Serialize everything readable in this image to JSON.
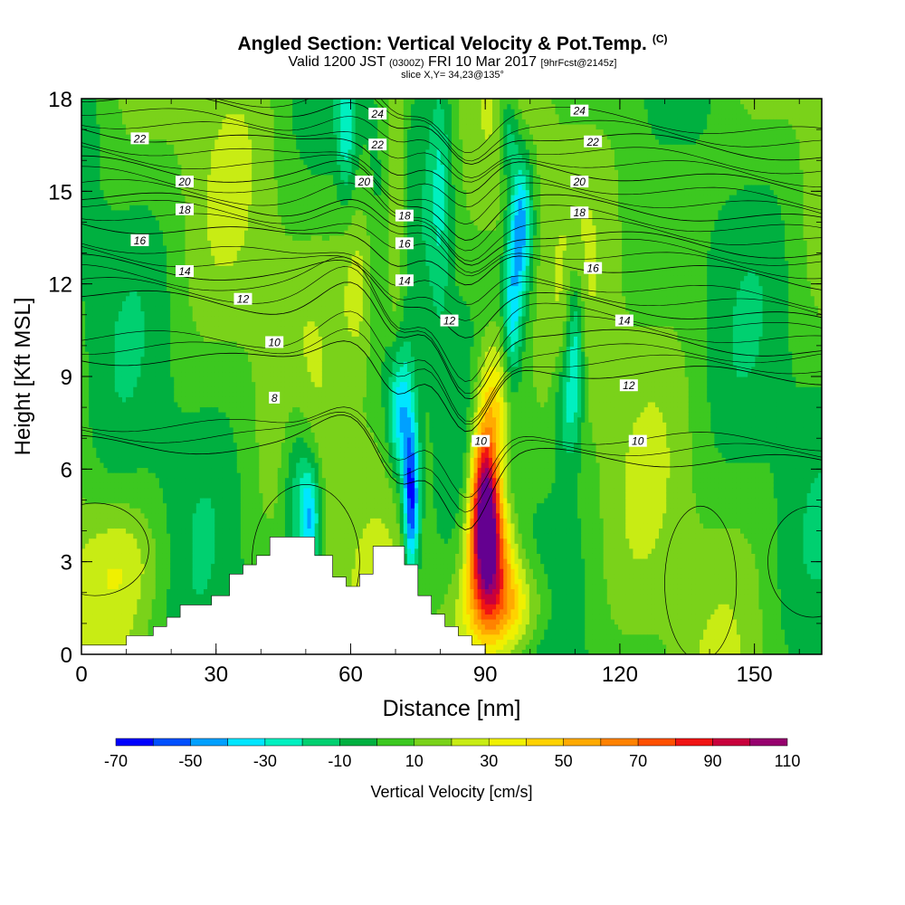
{
  "title": {
    "main": "Angled Section: Vertical Velocity & Pot.Temp.",
    "mark": "(C)",
    "valid_label": "Valid 1200 JST",
    "valid_utc": "(0300Z)",
    "valid_date": "FRI 10 Mar 2017",
    "forecast": "[9hrFcst@2145z]",
    "slice": "slice X,Y= 34,23@135°"
  },
  "chart_data": {
    "type": "heatmap",
    "xlabel": "Distance [nm]",
    "ylabel": "Height [Kft MSL]",
    "xlim": [
      0,
      165
    ],
    "ylim": [
      0,
      18
    ],
    "xticks": [
      0,
      30,
      60,
      90,
      120,
      150
    ],
    "yticks": [
      0,
      3,
      6,
      9,
      12,
      15,
      18
    ],
    "colorbar": {
      "label": "Vertical Velocity [cm/s]",
      "tick_labels": [
        "-70",
        "-50",
        "-30",
        "-10",
        "10",
        "30",
        "50",
        "70",
        "90",
        "110"
      ],
      "levels": [
        -70,
        -60,
        -50,
        -40,
        -30,
        -20,
        -10,
        0,
        10,
        20,
        30,
        40,
        50,
        60,
        70,
        80,
        90,
        100,
        110
      ],
      "colors": [
        "#0000ff",
        "#0050ff",
        "#00a0ff",
        "#00e6ff",
        "#00f0c0",
        "#00d070",
        "#00b040",
        "#3cc820",
        "#7ad21a",
        "#c8ec14",
        "#f0f000",
        "#ffd200",
        "#ffaa00",
        "#ff8200",
        "#ff5000",
        "#f01414",
        "#c8003c",
        "#96006e",
        "#640090"
      ]
    },
    "terrain_kft": [
      [
        0,
        0.3
      ],
      [
        10,
        0.3
      ],
      [
        10,
        0.6
      ],
      [
        16,
        0.6
      ],
      [
        16,
        0.9
      ],
      [
        19,
        0.9
      ],
      [
        19,
        1.2
      ],
      [
        22,
        1.2
      ],
      [
        22,
        1.6
      ],
      [
        29,
        1.6
      ],
      [
        29,
        1.9
      ],
      [
        33,
        1.9
      ],
      [
        33,
        2.6
      ],
      [
        36,
        2.6
      ],
      [
        36,
        2.9
      ],
      [
        39,
        2.9
      ],
      [
        39,
        3.2
      ],
      [
        42,
        3.2
      ],
      [
        42,
        3.8
      ],
      [
        52,
        3.8
      ],
      [
        52,
        3.2
      ],
      [
        56,
        3.2
      ],
      [
        56,
        2.5
      ],
      [
        59,
        2.5
      ],
      [
        59,
        2.2
      ],
      [
        62,
        2.2
      ],
      [
        62,
        2.6
      ],
      [
        65,
        2.6
      ],
      [
        65,
        3.5
      ],
      [
        72,
        3.5
      ],
      [
        72,
        2.9
      ],
      [
        75,
        2.9
      ],
      [
        75,
        1.9
      ],
      [
        78,
        1.9
      ],
      [
        78,
        1.3
      ],
      [
        81,
        1.3
      ],
      [
        81,
        0.9
      ],
      [
        84,
        0.9
      ],
      [
        84,
        0.6
      ],
      [
        87,
        0.6
      ],
      [
        87,
        0.3
      ],
      [
        90,
        0.3
      ],
      [
        90,
        0.0
      ],
      [
        165,
        0.0
      ]
    ],
    "isentropes": {
      "levels": [
        8,
        10,
        12,
        14,
        16,
        18,
        20,
        22,
        24
      ],
      "labels": [
        {
          "text": "22",
          "x": 13,
          "y": 16.7
        },
        {
          "text": "20",
          "x": 23,
          "y": 15.3
        },
        {
          "text": "18",
          "x": 23,
          "y": 14.4
        },
        {
          "text": "16",
          "x": 13,
          "y": 13.4
        },
        {
          "text": "14",
          "x": 23,
          "y": 12.4
        },
        {
          "text": "12",
          "x": 36,
          "y": 11.5
        },
        {
          "text": "10",
          "x": 43,
          "y": 10.1
        },
        {
          "text": "8",
          "x": 43,
          "y": 8.3
        },
        {
          "text": "24",
          "x": 66,
          "y": 17.5
        },
        {
          "text": "22",
          "x": 66,
          "y": 16.5
        },
        {
          "text": "20",
          "x": 63,
          "y": 15.3
        },
        {
          "text": "18",
          "x": 72,
          "y": 14.2
        },
        {
          "text": "16",
          "x": 72,
          "y": 13.3
        },
        {
          "text": "14",
          "x": 72,
          "y": 12.1
        },
        {
          "text": "12",
          "x": 82,
          "y": 10.8
        },
        {
          "text": "10",
          "x": 89,
          "y": 6.9
        },
        {
          "text": "24",
          "x": 111,
          "y": 17.6
        },
        {
          "text": "22",
          "x": 114,
          "y": 16.6
        },
        {
          "text": "20",
          "x": 111,
          "y": 15.3
        },
        {
          "text": "18",
          "x": 111,
          "y": 14.3
        },
        {
          "text": "16",
          "x": 114,
          "y": 12.5
        },
        {
          "text": "14",
          "x": 121,
          "y": 10.8
        },
        {
          "text": "12",
          "x": 122,
          "y": 8.7
        },
        {
          "text": "10",
          "x": 124,
          "y": 6.9
        }
      ]
    }
  }
}
